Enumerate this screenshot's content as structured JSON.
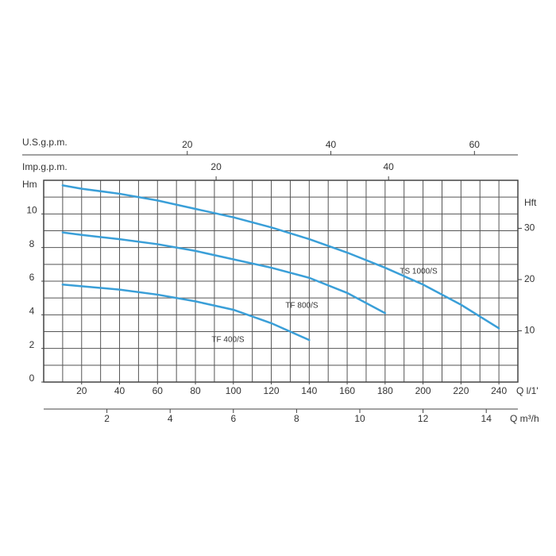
{
  "chart_data": {
    "type": "line",
    "x_label": "Q l/1'",
    "y_label": "Hm",
    "y2_label": "Hft",
    "xlim": [
      0,
      250
    ],
    "xticks": [
      20,
      40,
      60,
      80,
      100,
      120,
      140,
      160,
      180,
      200,
      220,
      240
    ],
    "ylim": [
      0,
      12
    ],
    "yticks": [
      0,
      2,
      4,
      6,
      8,
      10
    ],
    "y2lim": [
      0,
      39.37
    ],
    "y2ticks": [
      10,
      20,
      30
    ],
    "extra_x_axes": [
      {
        "label": "U.S.g.p.m.",
        "lim": [
          0,
          66.05
        ],
        "ticks": [
          20,
          40,
          60
        ]
      },
      {
        "label": "Imp.g.p.m.",
        "lim": [
          0,
          55
        ],
        "ticks": [
          20,
          40
        ]
      },
      {
        "label": "Q m³/h",
        "lim": [
          0,
          15
        ],
        "ticks": [
          2,
          4,
          6,
          8,
          10,
          12,
          14
        ]
      }
    ],
    "grid": true,
    "series": [
      {
        "name": "TS 1000/S",
        "color": "#3a9fd8",
        "x": [
          10,
          20,
          40,
          60,
          80,
          100,
          120,
          140,
          160,
          180,
          200,
          220,
          240
        ],
        "values": [
          11.7,
          11.5,
          11.2,
          10.8,
          10.3,
          9.8,
          9.2,
          8.5,
          7.7,
          6.8,
          5.8,
          4.6,
          3.2
        ]
      },
      {
        "name": "TF 800/S",
        "color": "#3a9fd8",
        "x": [
          10,
          20,
          40,
          60,
          80,
          100,
          120,
          140,
          160,
          180
        ],
        "values": [
          8.9,
          8.75,
          8.5,
          8.2,
          7.8,
          7.3,
          6.8,
          6.2,
          5.3,
          4.1
        ]
      },
      {
        "name": "TF 400/S",
        "color": "#3a9fd8",
        "x": [
          10,
          20,
          40,
          60,
          80,
          100,
          120,
          140
        ],
        "values": [
          5.8,
          5.7,
          5.5,
          5.2,
          4.8,
          4.3,
          3.5,
          2.5
        ]
      }
    ]
  }
}
